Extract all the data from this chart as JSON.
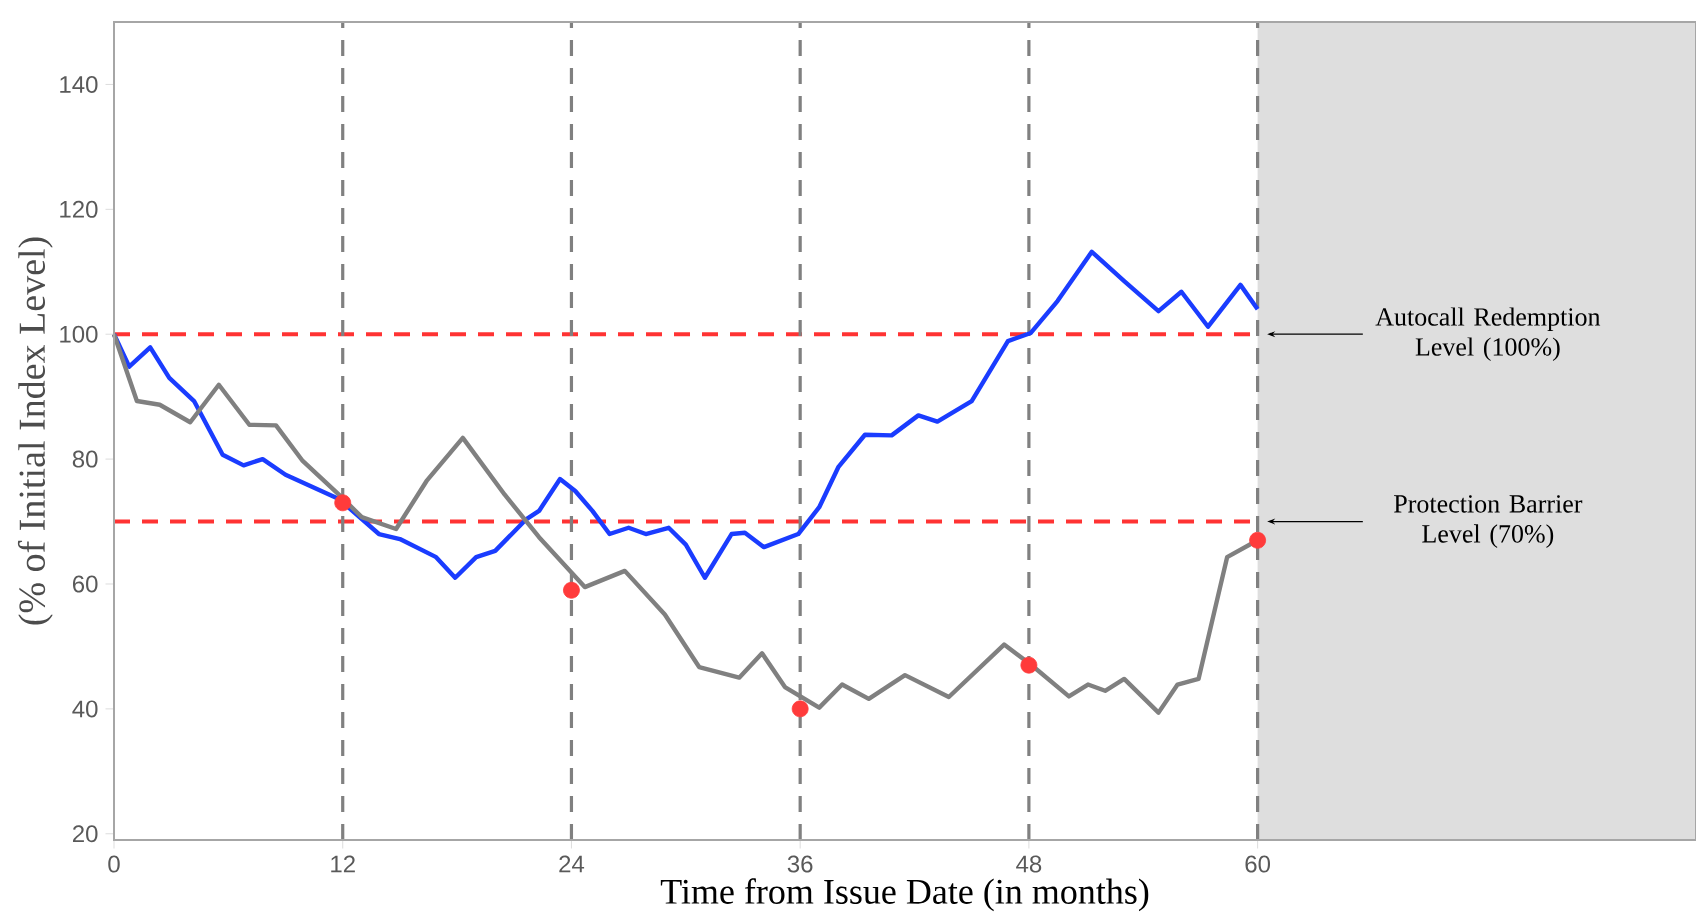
{
  "chart_data": {
    "type": "line",
    "xlabel": "Time from Issue Date (in months)",
    "ylabel": "(% of Initial Index Level)",
    "xlim": [
      0,
      83
    ],
    "ylim": [
      19,
      150
    ],
    "xticks": [
      0,
      12,
      24,
      36,
      48,
      60
    ],
    "yticks": [
      20,
      40,
      60,
      80,
      100,
      120,
      140
    ],
    "series": [
      {
        "color": "#1a3cff",
        "x": [
          0,
          0.8,
          1.9,
          2.9,
          4.2,
          5.7,
          6.8,
          7.8,
          9.0,
          11.8,
          13.9,
          15,
          16.9,
          17.9,
          19,
          20,
          21.6,
          22.3,
          23.4,
          24.2,
          25.1,
          26,
          27,
          27.9,
          29.1,
          30,
          31,
          32.4,
          33.1,
          34.1,
          35.9,
          37,
          38,
          39.4,
          40.8,
          42.2,
          43.2,
          45,
          46.9,
          48.1,
          49.5,
          51.3,
          53,
          54.8,
          56,
          57.4,
          59.1,
          60
        ],
        "values": [
          100,
          94.8,
          97.9,
          93,
          89.3,
          80.7,
          79,
          80,
          77.5,
          73.6,
          68,
          67.2,
          64.3,
          61,
          64.3,
          65.3,
          70.3,
          71.7,
          76.8,
          74.9,
          71.7,
          68,
          69,
          68,
          69,
          66.3,
          61,
          68,
          68.2,
          65.9,
          68,
          72.3,
          78.7,
          83.9,
          83.8,
          87,
          86,
          89.3,
          98.9,
          100.2,
          105.3,
          113.2,
          108.5,
          103.7,
          106.8,
          101.2,
          107.9,
          104
        ]
      },
      {
        "color": "#808080",
        "x": [
          0,
          1.2,
          2.4,
          4,
          5.5,
          7.1,
          8.5,
          9.9,
          11.8,
          13,
          14.8,
          16.4,
          18.3,
          20.5,
          22.3,
          24.7,
          26.8,
          28.9,
          30.7,
          32.8,
          34,
          35.2,
          37,
          38.2,
          39.6,
          41.5,
          43.8,
          46.7,
          48.1,
          50.1,
          51.1,
          52,
          53,
          54.8,
          55.8,
          56.9,
          58.4,
          60
        ],
        "values": [
          100,
          89.3,
          88.7,
          85.9,
          91.9,
          85.5,
          85.4,
          79.7,
          74.3,
          70.7,
          68.8,
          76.5,
          83.4,
          74.3,
          67.5,
          59.5,
          62.1,
          55.1,
          46.7,
          45,
          48.9,
          43.5,
          40.2,
          43.9,
          41.6,
          45.4,
          41.9,
          50.3,
          47.1,
          42,
          43.9,
          42.9,
          44.8,
          39.4,
          43.9,
          44.8,
          64.3,
          67
        ]
      },
      {
        "type": "scatter",
        "color": "#ff3b3b",
        "x": [
          12,
          24,
          36,
          48,
          60
        ],
        "values": [
          73,
          59,
          40,
          47,
          67
        ]
      }
    ],
    "ref_lines": [
      {
        "axis": "y",
        "value": 100,
        "label": "Autocall Redemption Level (100%)",
        "color": "#ff3333",
        "line_style": "dashed"
      },
      {
        "axis": "y",
        "value": 70,
        "label": "Protection Barrier Level (70%)",
        "color": "#ff3333",
        "line_style": "dashed"
      },
      {
        "axis": "x",
        "value": 12,
        "color": "#808080",
        "line_style": "dashed"
      },
      {
        "axis": "x",
        "value": 24,
        "color": "#808080",
        "line_style": "dashed"
      },
      {
        "axis": "x",
        "value": 36,
        "color": "#808080",
        "line_style": "dashed"
      },
      {
        "axis": "x",
        "value": 48,
        "color": "#808080",
        "line_style": "dashed"
      },
      {
        "axis": "x",
        "value": 60,
        "color": "#808080",
        "line_style": "dashed"
      }
    ],
    "bands": [
      {
        "axis": "x",
        "from": 60,
        "to": 83,
        "color": "#dedede"
      }
    ]
  }
}
